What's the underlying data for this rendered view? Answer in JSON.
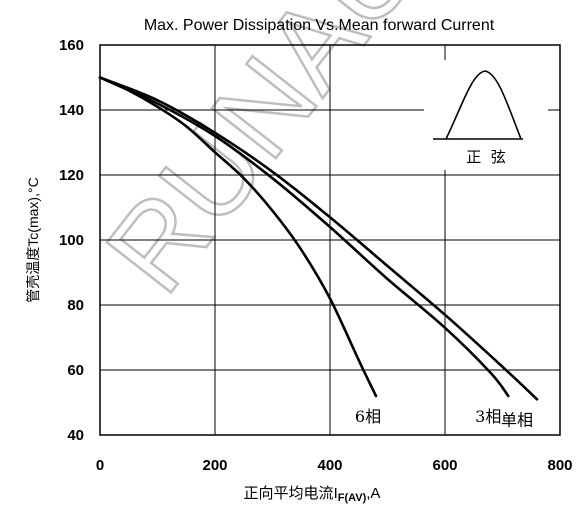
{
  "chart_data": {
    "type": "line",
    "title": "Max. Power Dissipation Vs.Mean forward Current",
    "xlabel": {
      "prefix": "正向平均电流",
      "symbol": "I",
      "subscript": "F(AV)",
      "suffix": ",A"
    },
    "ylabel": {
      "prefix": "管壳温度",
      "main": "Tc(max),°C"
    },
    "xlim": [
      0,
      800
    ],
    "ylim": [
      40,
      160
    ],
    "xticks": [
      "0",
      "200",
      "400",
      "600",
      "800"
    ],
    "yticks": [
      "40",
      "60",
      "80",
      "100",
      "120",
      "140",
      "160"
    ],
    "grid": true,
    "series": [
      {
        "name": "6相",
        "x": [
          0,
          50,
          100,
          150,
          200,
          250,
          300,
          350,
          400,
          450,
          480
        ],
        "y": [
          150,
          146,
          141,
          135,
          127,
          119,
          109,
          97,
          82,
          63,
          52
        ]
      },
      {
        "name": "3相",
        "x": [
          0,
          100,
          200,
          300,
          400,
          500,
          600,
          680,
          710
        ],
        "y": [
          150,
          142,
          132,
          119,
          104,
          88,
          73,
          59,
          52
        ]
      },
      {
        "name": "单相",
        "x": [
          0,
          100,
          200,
          300,
          400,
          500,
          600,
          700,
          760
        ],
        "y": [
          150,
          143,
          133,
          121,
          107,
          92,
          77,
          61,
          51
        ]
      }
    ],
    "inset": {
      "label": "正  弦",
      "shape": "half-sine-waveform"
    },
    "watermark": "RUNAU"
  }
}
